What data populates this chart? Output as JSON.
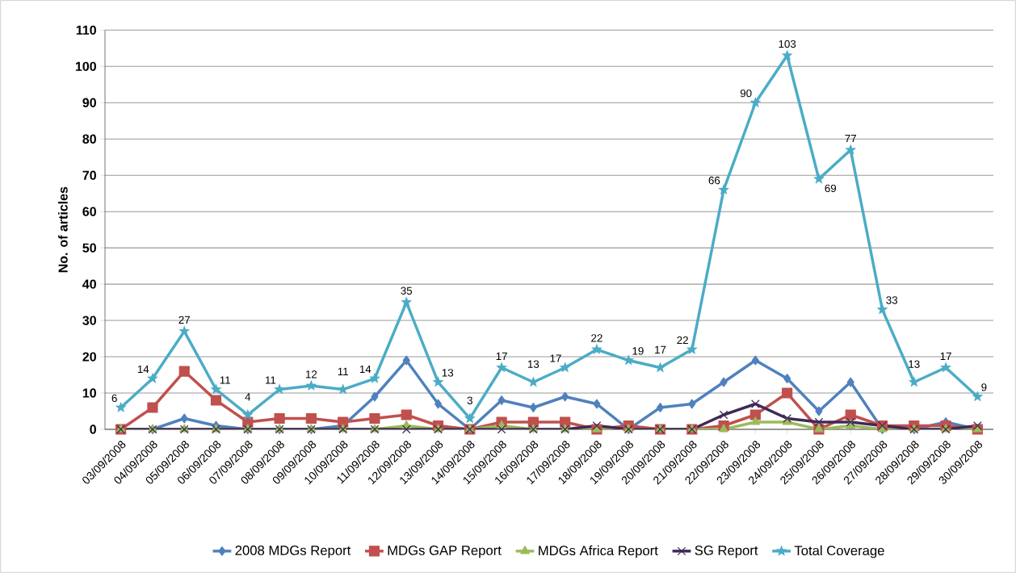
{
  "chart_data": {
    "type": "line",
    "ylabel": "No. of articles",
    "categories": [
      "03/09/2008",
      "04/09/2008",
      "05/09/2008",
      "06/09/2008",
      "07/09/2008",
      "08/09/2008",
      "09/09/2008",
      "10/09/2008",
      "11/09/2008",
      "12/09/2008",
      "13/09/2008",
      "14/09/2008",
      "15/09/2008",
      "16/09/2008",
      "17/09/2008",
      "18/09/2008",
      "19/09/2008",
      "20/09/2008",
      "21/09/2008",
      "22/09/2008",
      "23/09/2008",
      "24/09/2008",
      "25/09/2008",
      "26/09/2008",
      "27/09/2008",
      "28/09/2008",
      "29/09/2008",
      "30/09/2008"
    ],
    "ylim": [
      0,
      110
    ],
    "yticks": [
      0,
      10,
      20,
      30,
      40,
      50,
      60,
      70,
      80,
      90,
      100,
      110
    ],
    "grid": "y",
    "legend": "bottom",
    "line_style": "solid",
    "series": [
      {
        "name": "2008 MDGs Report",
        "color": "#4f81bd",
        "marker": "diamond",
        "values": [
          0,
          0,
          3,
          1,
          0,
          0,
          0,
          1,
          9,
          19,
          7,
          0,
          8,
          6,
          9,
          7,
          0,
          6,
          7,
          13,
          19,
          14,
          5,
          13,
          0,
          0,
          2,
          0
        ]
      },
      {
        "name": "MDGs GAP Report",
        "color": "#c0504d",
        "marker": "square",
        "values": [
          0,
          6,
          16,
          8,
          2,
          3,
          3,
          2,
          3,
          4,
          1,
          0,
          2,
          2,
          2,
          0,
          1,
          0,
          0,
          1,
          4,
          10,
          0,
          4,
          1,
          1,
          1,
          0
        ]
      },
      {
        "name": "MDGs Africa Report",
        "color": "#9bbb59",
        "marker": "triangle",
        "values": [
          0,
          0,
          0,
          0,
          0,
          0,
          0,
          0,
          0,
          1,
          0,
          0,
          1,
          0,
          0,
          0,
          0,
          0,
          0,
          0,
          2,
          2,
          0,
          1,
          0,
          0,
          0,
          0
        ]
      },
      {
        "name": "SG Report",
        "color": "#3f2a56",
        "marker": "cross",
        "values": [
          0,
          0,
          0,
          0,
          0,
          0,
          0,
          0,
          0,
          0,
          0,
          0,
          0,
          0,
          0,
          1,
          0,
          0,
          0,
          4,
          7,
          3,
          2,
          2,
          1,
          0,
          0,
          1
        ]
      },
      {
        "name": "Total Coverage",
        "color": "#4bacc6",
        "marker": "star",
        "values": [
          6,
          14,
          27,
          11,
          4,
          11,
          12,
          11,
          14,
          35,
          13,
          3,
          17,
          13,
          17,
          22,
          19,
          17,
          22,
          66,
          90,
          103,
          69,
          77,
          33,
          13,
          17,
          9
        ],
        "value_labels": [
          "6",
          "14",
          "27",
          "11",
          "4",
          "11",
          "12",
          "11",
          "14",
          "35",
          "13",
          "3",
          "17",
          "13",
          "17",
          "22",
          "19",
          "17",
          "22",
          "66",
          "90",
          "103",
          "69",
          "77",
          "33",
          "13",
          "17",
          "9"
        ]
      }
    ]
  }
}
